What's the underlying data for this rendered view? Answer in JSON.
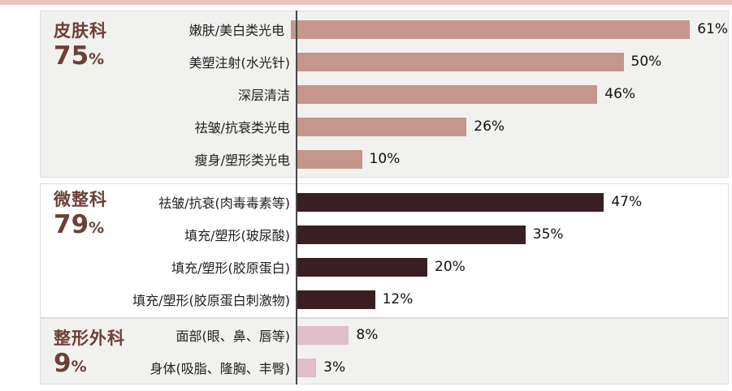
{
  "accent": {
    "top_strip_color": "#e9c5be",
    "axis_color": "#47464a",
    "section_label_color": "#6b4036",
    "panel_border_color": "#dcdcda"
  },
  "chart_data": {
    "type": "bar",
    "orientation": "horizontal",
    "unit": "%",
    "xlim": [
      0,
      66
    ],
    "grid": false,
    "legend": false,
    "sections": [
      {
        "name": "皮肤科",
        "share": "75",
        "share_unit": "%",
        "share_label": "75%",
        "bar_color": "#c5968c",
        "panel_bg": "#f1f1ef",
        "rows": [
          {
            "label": "嫩肤/美白类光电",
            "value": 61,
            "value_label": "61%"
          },
          {
            "label": "美塑注射(水光针)",
            "value": 50,
            "value_label": "50%"
          },
          {
            "label": "深层清洁",
            "value": 46,
            "value_label": "46%"
          },
          {
            "label": "祛皱/抗衰类光电",
            "value": 26,
            "value_label": "26%"
          },
          {
            "label": "瘦身/塑形类光电",
            "value": 10,
            "value_label": "10%"
          }
        ]
      },
      {
        "name": "微整科",
        "share": "79",
        "share_unit": "%",
        "share_label": "79%",
        "bar_color": "#3a1e21",
        "panel_bg": "#ffffff",
        "rows": [
          {
            "label": "祛皱/抗衰(肉毒毒素等)",
            "value": 47,
            "value_label": "47%"
          },
          {
            "label": "填充/塑形(玻尿酸)",
            "value": 35,
            "value_label": "35%"
          },
          {
            "label": "填充/塑形(胶原蛋白)",
            "value": 20,
            "value_label": "20%"
          },
          {
            "label": "填充/塑形(胶原蛋白刺激物)",
            "value": 12,
            "value_label": "12%"
          }
        ]
      },
      {
        "name": "整形外科",
        "share": "9",
        "share_unit": "%",
        "share_label": "9%",
        "bar_color": "#debec8",
        "panel_bg": "#f1f1ef",
        "rows": [
          {
            "label": "面部(眼、鼻、唇等)",
            "value": 8,
            "value_label": "8%"
          },
          {
            "label": "身体(吸脂、隆胸、丰臀)",
            "value": 3,
            "value_label": "3%"
          }
        ]
      }
    ]
  }
}
